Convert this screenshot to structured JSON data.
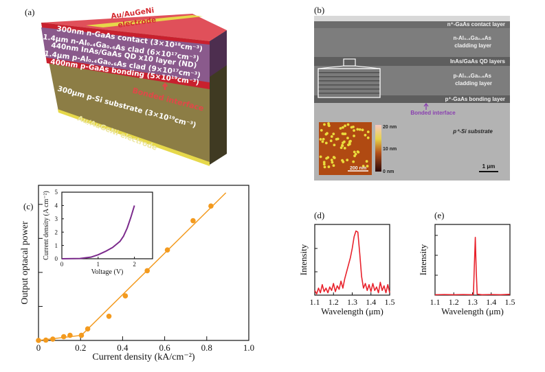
{
  "panel_labels": {
    "a": "(a)",
    "b": "(b)",
    "c": "(c)",
    "d": "(d)",
    "e": "(e)"
  },
  "panel_a": {
    "top_electrode": [
      "Au/AuGeNi",
      "electrode"
    ],
    "layers": [
      "300nm n-GaAs contact (3×10¹⁸cm⁻³)",
      "1.4μm n-Al₀.₄Ga₀.₆As clad (6×10¹⁷cm⁻³)",
      "440nm InAs/GaAs QD x10 layer (ND)",
      "1.4μm p-Al₀.₄Ga₀.₆As clad (9×10¹⁷cm⁻³)",
      "400nm p-GaAs bonding (5×10¹⁹cm⁻³)"
    ],
    "bonded_interface": "Bonded interface",
    "substrate": "300μm p-Si substrate (3×10¹⁹cm⁻³)",
    "bottom_electrode": "Au/AuGeNi electrode",
    "colors": {
      "contact": "#c8202e",
      "clad": "#8a5a8c",
      "substrate": "#8c7d45",
      "electrode": "#e6d84a"
    }
  },
  "panel_b": {
    "layers": {
      "contact": "n⁺-GaAs contact layer",
      "n_clad_1": "n-Al₀.₄Ga₀.₆As",
      "n_clad_2": "cladding layer",
      "qd": "InAs/GaAs QD layers",
      "p_clad_1": "p-Al₀.₄Ga₀.₆As",
      "p_clad_2": "cladding layer",
      "bonding": "p⁺-GaAs bonding layer"
    },
    "bonded_interface": "Bonded interface",
    "substrate": "p⁺-Si substrate",
    "scale_bar": "1 μm",
    "afm_inset": {
      "scale_bar": "200 nm",
      "colorbar_labels": [
        "20 nm",
        "10 nm",
        "0 nm"
      ]
    },
    "accent": "#8a3fb0"
  },
  "chart_data": [
    {
      "id": "c",
      "type": "scatter",
      "xlabel": "Current density (kA/cm⁻²)",
      "ylabel": "Output optacal power",
      "xlim": [
        0,
        1.0
      ],
      "ylim": [
        0,
        4.56
      ],
      "xticks": [
        0,
        0.2,
        0.4,
        0.6,
        0.8,
        1.0
      ],
      "xtick_labels": [
        "0",
        "0.2",
        "0.4",
        "0.6",
        "0.8",
        "1.0"
      ],
      "yticks": [
        1,
        2,
        3,
        4
      ],
      "ytick_labels": [],
      "color": "#f39a1e",
      "points": [
        [
          0.0,
          0.0
        ],
        [
          0.035,
          0.01
        ],
        [
          0.068,
          0.04
        ],
        [
          0.12,
          0.11
        ],
        [
          0.15,
          0.15
        ],
        [
          0.204,
          0.15
        ],
        [
          0.234,
          0.34
        ],
        [
          0.335,
          0.71
        ],
        [
          0.413,
          1.31
        ],
        [
          0.517,
          2.05
        ],
        [
          0.613,
          2.66
        ],
        [
          0.735,
          3.52
        ],
        [
          0.82,
          3.95
        ]
      ],
      "fit_line": [
        [
          0.0,
          0.0
        ],
        [
          0.204,
          0.15
        ],
        [
          0.891,
          4.34
        ]
      ]
    },
    {
      "id": "c-inset",
      "type": "line",
      "xlabel": "Voltage (V)",
      "ylabel": "Current density (A cm⁻²)",
      "xlim": [
        0,
        2.5
      ],
      "ylim": [
        0,
        5
      ],
      "xticks": [
        0,
        1,
        2
      ],
      "xtick_labels": [
        "0",
        "1",
        "2"
      ],
      "yticks": [
        0,
        1,
        2,
        3,
        4,
        5
      ],
      "ytick_labels": [
        "0",
        "1",
        "2",
        "3",
        "4",
        "5"
      ],
      "color": "#7b2a8c",
      "series": [
        {
          "x": [
            0,
            0.5,
            0.8,
            1.0,
            1.2,
            1.4,
            1.6,
            1.7,
            1.8,
            1.9,
            2.0
          ],
          "y": [
            0,
            0.02,
            0.12,
            0.3,
            0.55,
            0.85,
            1.3,
            1.7,
            2.3,
            3.1,
            4.0
          ]
        }
      ]
    },
    {
      "id": "d",
      "type": "line",
      "xlabel": "Wavelength (μm)",
      "ylabel": "Intensity",
      "xlim": [
        1.1,
        1.5
      ],
      "ylim": [
        0,
        3.03
      ],
      "xticks": [
        1.1,
        1.2,
        1.3,
        1.4,
        1.5
      ],
      "xtick_labels": [
        "1.1",
        "1.2",
        "1.3",
        "1.4",
        "1.5"
      ],
      "yticks": [
        1,
        2
      ],
      "ytick_labels": [],
      "color": "#e8212b",
      "series": [
        {
          "x": [
            1.1,
            1.11,
            1.12,
            1.13,
            1.14,
            1.15,
            1.16,
            1.17,
            1.18,
            1.19,
            1.2,
            1.21,
            1.22,
            1.23,
            1.24,
            1.25,
            1.26,
            1.27,
            1.28,
            1.29,
            1.3,
            1.31,
            1.32,
            1.33,
            1.34,
            1.35,
            1.36,
            1.37,
            1.38,
            1.39,
            1.4,
            1.41,
            1.42,
            1.43,
            1.44,
            1.45,
            1.46,
            1.47,
            1.48,
            1.49,
            1.5
          ],
          "y": [
            0.2,
            0.05,
            0.3,
            0.1,
            0.45,
            0.15,
            0.3,
            0.1,
            0.35,
            0.2,
            0.5,
            0.15,
            0.4,
            0.25,
            0.6,
            0.3,
            0.7,
            1.0,
            1.3,
            1.6,
            2.0,
            2.5,
            2.75,
            2.7,
            1.8,
            0.8,
            0.3,
            0.5,
            0.2,
            0.45,
            0.15,
            0.5,
            0.2,
            0.35,
            0.1,
            0.55,
            0.2,
            0.4,
            0.1,
            0.45,
            0.1
          ]
        }
      ]
    },
    {
      "id": "e",
      "type": "line",
      "xlabel": "Wavelength (μm)",
      "ylabel": "Intensity",
      "xlim": [
        1.1,
        1.5
      ],
      "ylim": [
        0,
        3.55
      ],
      "xticks": [
        1.1,
        1.2,
        1.3,
        1.4,
        1.5
      ],
      "xtick_labels": [
        "1.1",
        "1.2",
        "1.3",
        "1.4",
        "1.5"
      ],
      "yticks": [
        1,
        2,
        3
      ],
      "ytick_labels": [],
      "color": "#e8212b",
      "series": [
        {
          "x": [
            1.1,
            1.15,
            1.2,
            1.25,
            1.3,
            1.305,
            1.31,
            1.315,
            1.32,
            1.325,
            1.35,
            1.4,
            1.45,
            1.5
          ],
          "y": [
            0.02,
            0.03,
            0.02,
            0.03,
            0.02,
            0.05,
            1.5,
            2.9,
            1.2,
            0.05,
            0.02,
            0.03,
            0.02,
            0.04
          ]
        }
      ]
    }
  ]
}
